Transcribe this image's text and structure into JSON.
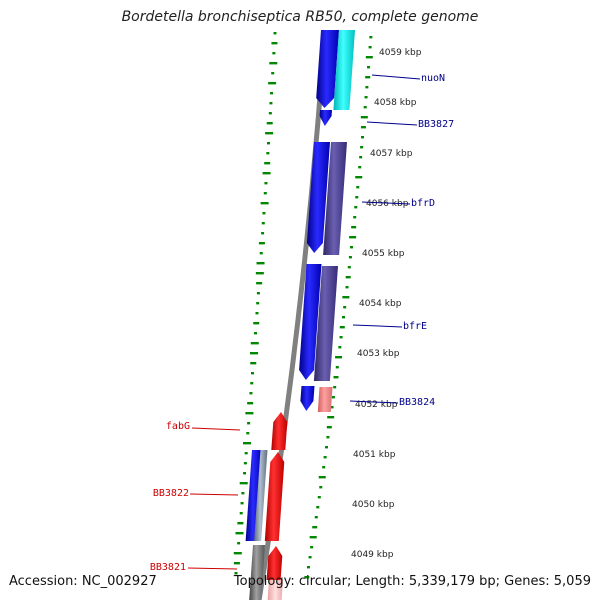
{
  "title": "Bordetella bronchiseptica RB50, complete genome",
  "footer": {
    "accession": "Accession: NC_002927",
    "summary": "Topology: circular; Length: 5,339,179 bp; Genes: 5,059"
  },
  "ticks": [
    {
      "label": "4059 kbp"
    },
    {
      "label": "4058 kbp"
    },
    {
      "label": "4057 kbp"
    },
    {
      "label": "4056 kbp"
    },
    {
      "label": "4055 kbp"
    },
    {
      "label": "4054 kbp"
    },
    {
      "label": "4053 kbp"
    },
    {
      "label": "4052 kbp"
    },
    {
      "label": "4051 kbp"
    },
    {
      "label": "4050 kbp"
    },
    {
      "label": "4049 kbp"
    }
  ],
  "gene_labels": [
    {
      "name": "nuoN",
      "strand": "forward"
    },
    {
      "name": "BB3827",
      "strand": "forward"
    },
    {
      "name": "bfrD",
      "strand": "forward"
    },
    {
      "name": "bfrE",
      "strand": "forward"
    },
    {
      "name": "BB3824",
      "strand": "forward"
    },
    {
      "name": "fabG",
      "strand": "reverse"
    },
    {
      "name": "BB3822",
      "strand": "reverse"
    },
    {
      "name": "BB3821",
      "strand": "reverse"
    }
  ],
  "colors": {
    "forward_label": "#00008b",
    "reverse_label": "#cc0000",
    "cds_blue": "#0000ee",
    "cds_cyan": "#00e5e5",
    "cds_slate": "#4b3f8f",
    "cds_red": "#ee0000",
    "cds_pink": "#f08080",
    "cds_grey": "#707070",
    "gc_tick": "#008800",
    "backbone": "#808080"
  }
}
